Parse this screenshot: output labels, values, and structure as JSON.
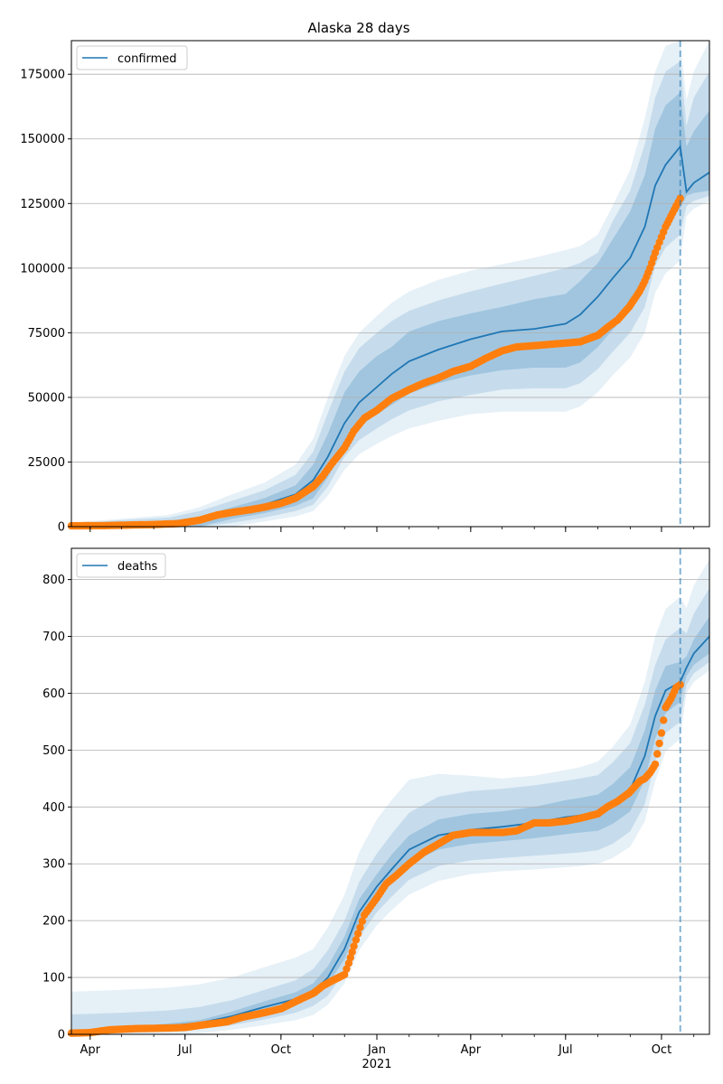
{
  "chart_data": [
    {
      "type": "line",
      "title": "Alaska 28 days",
      "xlabel": "",
      "ylabel": "",
      "x_range": [
        "2020-03-14",
        "2021-11-16"
      ],
      "ylim": [
        0,
        188000
      ],
      "yticks": [
        0,
        25000,
        50000,
        75000,
        100000,
        125000,
        150000,
        175000
      ],
      "x_ticks": [
        {
          "date": "2020-04-01",
          "label": "Apr"
        },
        {
          "date": "2020-07-01",
          "label": "Jul"
        },
        {
          "date": "2020-10-01",
          "label": "Oct"
        },
        {
          "date": "2021-01-01",
          "label": "Jan"
        },
        {
          "date": "2021-04-01",
          "label": "Apr"
        },
        {
          "date": "2021-07-01",
          "label": "Jul"
        },
        {
          "date": "2021-10-01",
          "label": "Oct"
        }
      ],
      "show_x_labels": false,
      "year_label": "",
      "forecast_start": "2021-10-19",
      "grid": "y",
      "legend": {
        "position": "upper-left",
        "label": "confirmed"
      },
      "colors": {
        "model": "#1f77b4",
        "observed": "#ff7f0e",
        "band": "#1f77b4",
        "vline": "#1f77b4"
      },
      "model": {
        "dates": [
          "2020-03-14",
          "2020-05-01",
          "2020-06-15",
          "2020-07-15",
          "2020-08-15",
          "2020-09-15",
          "2020-10-15",
          "2020-11-01",
          "2020-11-15",
          "2020-12-01",
          "2020-12-15",
          "2021-01-01",
          "2021-01-15",
          "2021-02-01",
          "2021-03-01",
          "2021-04-01",
          "2021-05-01",
          "2021-06-01",
          "2021-07-01",
          "2021-07-15",
          "2021-08-01",
          "2021-08-15",
          "2021-09-01",
          "2021-09-15",
          "2021-09-25",
          "2021-10-05",
          "2021-10-19",
          "2021-10-25",
          "2021-11-01",
          "2021-11-16"
        ],
        "values": [
          300,
          600,
          900,
          2500,
          5500,
          8500,
          12500,
          18000,
          27000,
          40000,
          48000,
          54000,
          59000,
          64000,
          68500,
          72500,
          75500,
          76500,
          78500,
          82000,
          89000,
          96000,
          104000,
          116000,
          132000,
          140000,
          147000,
          129500,
          133000,
          137000
        ],
        "bands": [
          {
            "lower": [
              0,
              0,
              0,
              0,
              3000,
              5200,
              8000,
              11000,
              19000,
              31000,
              38500,
              43500,
              47000,
              51500,
              55500,
              58500,
              60500,
              61500,
              61500,
              63500,
              69500,
              76000,
              84000,
              94000,
              110000,
              117000,
              123000,
              128000,
              129000,
              130000
            ],
            "upper": [
              800,
              1500,
              2200,
              4000,
              7500,
              11000,
              16000,
              24000,
              36000,
              52000,
              60000,
              66000,
              69500,
              75500,
              79500,
              82500,
              85000,
              88000,
              90000,
              95000,
              102000,
              111000,
              122000,
              136000,
              154000,
              163000,
              168000,
              147000,
              153000,
              161000
            ]
          },
          {
            "lower": [
              0,
              0,
              0,
              0,
              1500,
              3500,
              6000,
              8500,
              15500,
              27000,
              33500,
              38000,
              41500,
              45000,
              48500,
              51000,
              53000,
              53500,
              53500,
              55500,
              61000,
              67500,
              75000,
              85000,
              101000,
              108000,
              113000,
              124000,
              126000,
              128000
            ],
            "upper": [
              1200,
              2500,
              3500,
              6000,
              10000,
              14000,
              20000,
              29000,
              44000,
              60000,
              69000,
              75000,
              79500,
              83500,
              87500,
              91000,
              94000,
              97000,
              100000,
              102000,
              106000,
              118000,
              130000,
              148000,
              166000,
              176000,
              180000,
              155000,
              166000,
              176000
            ]
          },
          {
            "lower": [
              0,
              0,
              0,
              0,
              0,
              2000,
              4000,
              6000,
              12000,
              22000,
              28000,
              32000,
              35000,
              38000,
              41000,
              43500,
              44500,
              44500,
              44500,
              46500,
              52000,
              58500,
              65500,
              75000,
              90500,
              98000,
              103000,
              120000,
              123000,
              126000
            ],
            "upper": [
              1600,
              3000,
              4500,
              7500,
              12500,
              17000,
              24000,
              34000,
              50000,
              66000,
              75000,
              81500,
              86500,
              91000,
              95500,
              99000,
              101500,
              104000,
              107000,
              108500,
              113000,
              124000,
              138000,
              158000,
              176000,
              186000,
              188000,
              165000,
              176000,
              188000
            ]
          }
        ]
      },
      "observed": {
        "dates": [
          "2020-03-14",
          "2020-04-15",
          "2020-06-01",
          "2020-06-25",
          "2020-07-15",
          "2020-08-01",
          "2020-08-15",
          "2020-09-01",
          "2020-09-15",
          "2020-10-01",
          "2020-10-15",
          "2020-11-01",
          "2020-11-10",
          "2020-11-20",
          "2020-12-01",
          "2020-12-10",
          "2020-12-20",
          "2021-01-01",
          "2021-01-15",
          "2021-02-01",
          "2021-02-15",
          "2021-03-01",
          "2021-03-15",
          "2021-04-01",
          "2021-04-15",
          "2021-05-01",
          "2021-05-15",
          "2021-06-01",
          "2021-06-15",
          "2021-07-01",
          "2021-07-15",
          "2021-08-01",
          "2021-08-10",
          "2021-08-20",
          "2021-08-31",
          "2021-09-05",
          "2021-09-10",
          "2021-09-15",
          "2021-09-20",
          "2021-09-25",
          "2021-10-01",
          "2021-10-05",
          "2021-10-10",
          "2021-10-15",
          "2021-10-19"
        ],
        "values": [
          300,
          400,
          800,
          1200,
          2500,
          4500,
          5500,
          6500,
          7500,
          9000,
          11000,
          15500,
          19500,
          25000,
          30500,
          37000,
          42000,
          45000,
          49500,
          53000,
          55500,
          57500,
          60000,
          62000,
          65000,
          68000,
          69500,
          70000,
          70500,
          71000,
          71500,
          74000,
          77000,
          80000,
          85000,
          88000,
          91000,
          95000,
          100000,
          106000,
          112000,
          116000,
          120000,
          124000,
          127000
        ]
      }
    },
    {
      "type": "line",
      "title": "",
      "xlabel": "",
      "ylabel": "",
      "x_range": [
        "2020-03-14",
        "2021-11-16"
      ],
      "ylim": [
        0,
        855
      ],
      "yticks": [
        0,
        100,
        200,
        300,
        400,
        500,
        600,
        700,
        800
      ],
      "x_ticks": [
        {
          "date": "2020-04-01",
          "label": "Apr"
        },
        {
          "date": "2020-07-01",
          "label": "Jul"
        },
        {
          "date": "2020-10-01",
          "label": "Oct"
        },
        {
          "date": "2021-01-01",
          "label": "Jan"
        },
        {
          "date": "2021-04-01",
          "label": "Apr"
        },
        {
          "date": "2021-07-01",
          "label": "Jul"
        },
        {
          "date": "2021-10-01",
          "label": "Oct"
        }
      ],
      "show_x_labels": true,
      "year_label": "2021",
      "forecast_start": "2021-10-19",
      "grid": "y",
      "legend": {
        "position": "upper-left",
        "label": "deaths"
      },
      "colors": {
        "model": "#1f77b4",
        "observed": "#ff7f0e",
        "band": "#1f77b4",
        "vline": "#1f77b4"
      },
      "model": {
        "dates": [
          "2020-03-14",
          "2020-05-01",
          "2020-06-15",
          "2020-07-15",
          "2020-08-15",
          "2020-09-15",
          "2020-10-15",
          "2020-11-01",
          "2020-11-15",
          "2020-12-01",
          "2020-12-15",
          "2021-01-01",
          "2021-01-15",
          "2021-02-01",
          "2021-03-01",
          "2021-04-01",
          "2021-05-01",
          "2021-06-01",
          "2021-07-01",
          "2021-07-15",
          "2021-08-01",
          "2021-08-15",
          "2021-09-01",
          "2021-09-15",
          "2021-09-25",
          "2021-10-05",
          "2021-10-19",
          "2021-10-25",
          "2021-11-01",
          "2021-11-16"
        ],
        "values": [
          0,
          8,
          15,
          20,
          32,
          48,
          62,
          75,
          100,
          150,
          215,
          260,
          290,
          325,
          350,
          360,
          365,
          372,
          382,
          385,
          390,
          405,
          430,
          490,
          560,
          605,
          620,
          645,
          670,
          700
        ],
        "bands": [
          {
            "lower": [
              0,
              5,
              11,
              16,
              26,
              40,
              52,
              65,
              88,
              132,
              195,
              240,
              268,
              300,
              325,
              335,
              340,
              345,
              352,
              355,
              358,
              370,
              392,
              448,
              520,
              565,
              585,
              630,
              650,
              670
            ],
            "upper": [
              3,
              12,
              19,
              25,
              40,
              58,
              74,
              90,
              120,
              172,
              238,
              282,
              316,
              350,
              378,
              388,
              392,
              400,
              412,
              416,
              422,
              440,
              470,
              535,
              605,
              648,
              655,
              665,
              695,
              735
            ]
          },
          {
            "lower": [
              0,
              2,
              5,
              9,
              16,
              26,
              38,
              50,
              68,
              110,
              170,
              215,
              242,
              272,
              296,
              306,
              310,
              314,
              318,
              320,
              324,
              335,
              357,
              405,
              480,
              530,
              550,
              615,
              635,
              655
            ],
            "upper": [
              35,
              38,
              42,
              48,
              60,
              78,
              95,
              115,
              148,
              200,
              268,
              318,
              352,
              390,
              418,
              428,
              432,
              438,
              446,
              450,
              456,
              478,
              512,
              580,
              650,
              695,
              715,
              705,
              740,
              785
            ]
          },
          {
            "lower": [
              0,
              0,
              0,
              2,
              8,
              16,
              25,
              34,
              52,
              90,
              148,
              192,
              218,
              246,
              270,
              282,
              287,
              290,
              294,
              296,
              300,
              310,
              330,
              375,
              445,
              498,
              520,
              600,
              620,
              640
            ],
            "upper": [
              75,
              78,
              82,
              88,
              100,
              118,
              135,
              150,
              188,
              245,
              320,
              378,
              412,
              448,
              458,
              455,
              450,
              455,
              465,
              470,
              480,
              505,
              545,
              620,
              700,
              748,
              770,
              750,
              790,
              835
            ]
          }
        ]
      },
      "observed": {
        "dates": [
          "2020-03-14",
          "2020-04-01",
          "2020-04-20",
          "2020-05-15",
          "2020-06-15",
          "2020-07-01",
          "2020-07-20",
          "2020-08-10",
          "2020-08-25",
          "2020-09-15",
          "2020-10-01",
          "2020-10-20",
          "2020-11-01",
          "2020-11-10",
          "2020-11-20",
          "2020-12-01",
          "2020-12-05",
          "2020-12-10",
          "2020-12-20",
          "2021-01-01",
          "2021-01-10",
          "2021-01-20",
          "2021-02-01",
          "2021-02-15",
          "2021-03-01",
          "2021-03-15",
          "2021-04-01",
          "2021-05-01",
          "2021-05-15",
          "2021-06-01",
          "2021-06-15",
          "2021-07-01",
          "2021-07-15",
          "2021-08-01",
          "2021-08-10",
          "2021-08-20",
          "2021-08-31",
          "2021-09-10",
          "2021-09-15",
          "2021-09-20",
          "2021-09-25",
          "2021-10-01",
          "2021-10-05",
          "2021-10-10",
          "2021-10-15",
          "2021-10-19"
        ],
        "values": [
          2,
          3,
          8,
          10,
          11,
          12,
          17,
          22,
          30,
          38,
          45,
          62,
          72,
          85,
          95,
          105,
          125,
          155,
          210,
          240,
          265,
          280,
          300,
          320,
          335,
          350,
          355,
          355,
          358,
          372,
          372,
          375,
          380,
          388,
          400,
          410,
          425,
          445,
          450,
          460,
          475,
          530,
          575,
          590,
          610,
          615
        ]
      }
    }
  ]
}
